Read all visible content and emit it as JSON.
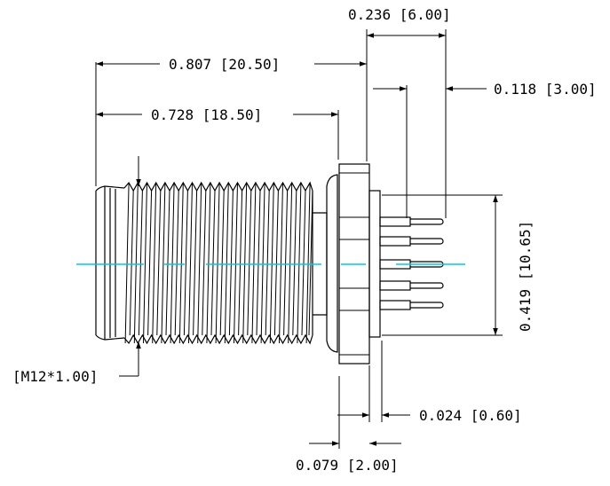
{
  "dimensions": {
    "overall_length": "0.807 [20.50]",
    "body_length": "0.728 [18.50]",
    "top_flange_to_pins": "0.236 [6.00]",
    "pin_spacing": "0.118 [3.00]",
    "pin_height": "0.419 [10.65]",
    "thread": "[M12*1.00]",
    "flange_gap": "0.024 [0.60]",
    "flange_thickness": "0.079 [2.00]"
  },
  "colors": {
    "lines": "#000000",
    "centerline": "#00c8e6",
    "background": "#ffffff"
  }
}
